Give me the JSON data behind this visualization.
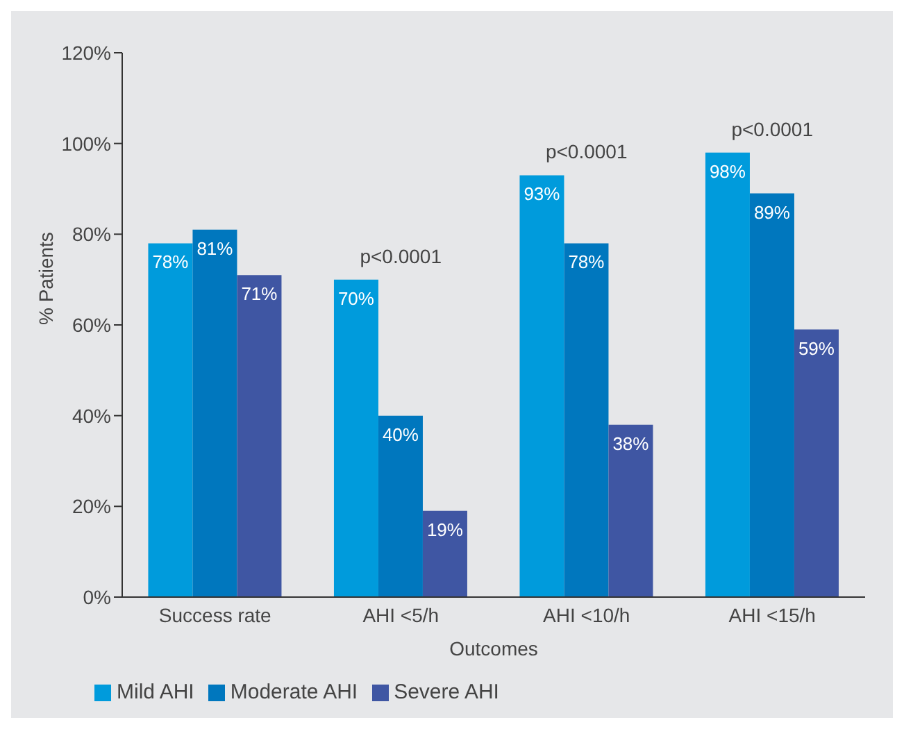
{
  "chart_data": {
    "type": "bar",
    "xlabel": "Outcomes",
    "ylabel": "% Patients",
    "categories": [
      "Success rate",
      "AHI <5/h",
      "AHI <10/h",
      "AHI <15/h"
    ],
    "series": [
      {
        "name": "Mild AHI",
        "color": "#009bdc",
        "values": [
          78,
          70,
          93,
          98
        ],
        "value_labels": [
          "78%",
          "70%",
          "93%",
          "98%"
        ]
      },
      {
        "name": "Moderate AHI",
        "color": "#0077be",
        "values": [
          81,
          40,
          78,
          89
        ],
        "value_labels": [
          "81%",
          "40%",
          "78%",
          "89%"
        ]
      },
      {
        "name": "Severe AHI",
        "color": "#3f56a3",
        "values": [
          71,
          19,
          38,
          59
        ],
        "value_labels": [
          "71%",
          "19%",
          "38%",
          "59%"
        ]
      }
    ],
    "ylim": [
      0,
      120
    ],
    "yticks": [
      {
        "value": 0,
        "label": "0%"
      },
      {
        "value": 20,
        "label": "20%"
      },
      {
        "value": 40,
        "label": "40%"
      },
      {
        "value": 60,
        "label": "60%"
      },
      {
        "value": 80,
        "label": "80%"
      },
      {
        "value": 100,
        "label": "100%"
      },
      {
        "value": 120,
        "label": "120%"
      }
    ],
    "annotations": [
      "p<0.0001",
      "p<0.0001",
      "p<0.0001"
    ],
    "grid": false,
    "legend": "bottom left"
  }
}
